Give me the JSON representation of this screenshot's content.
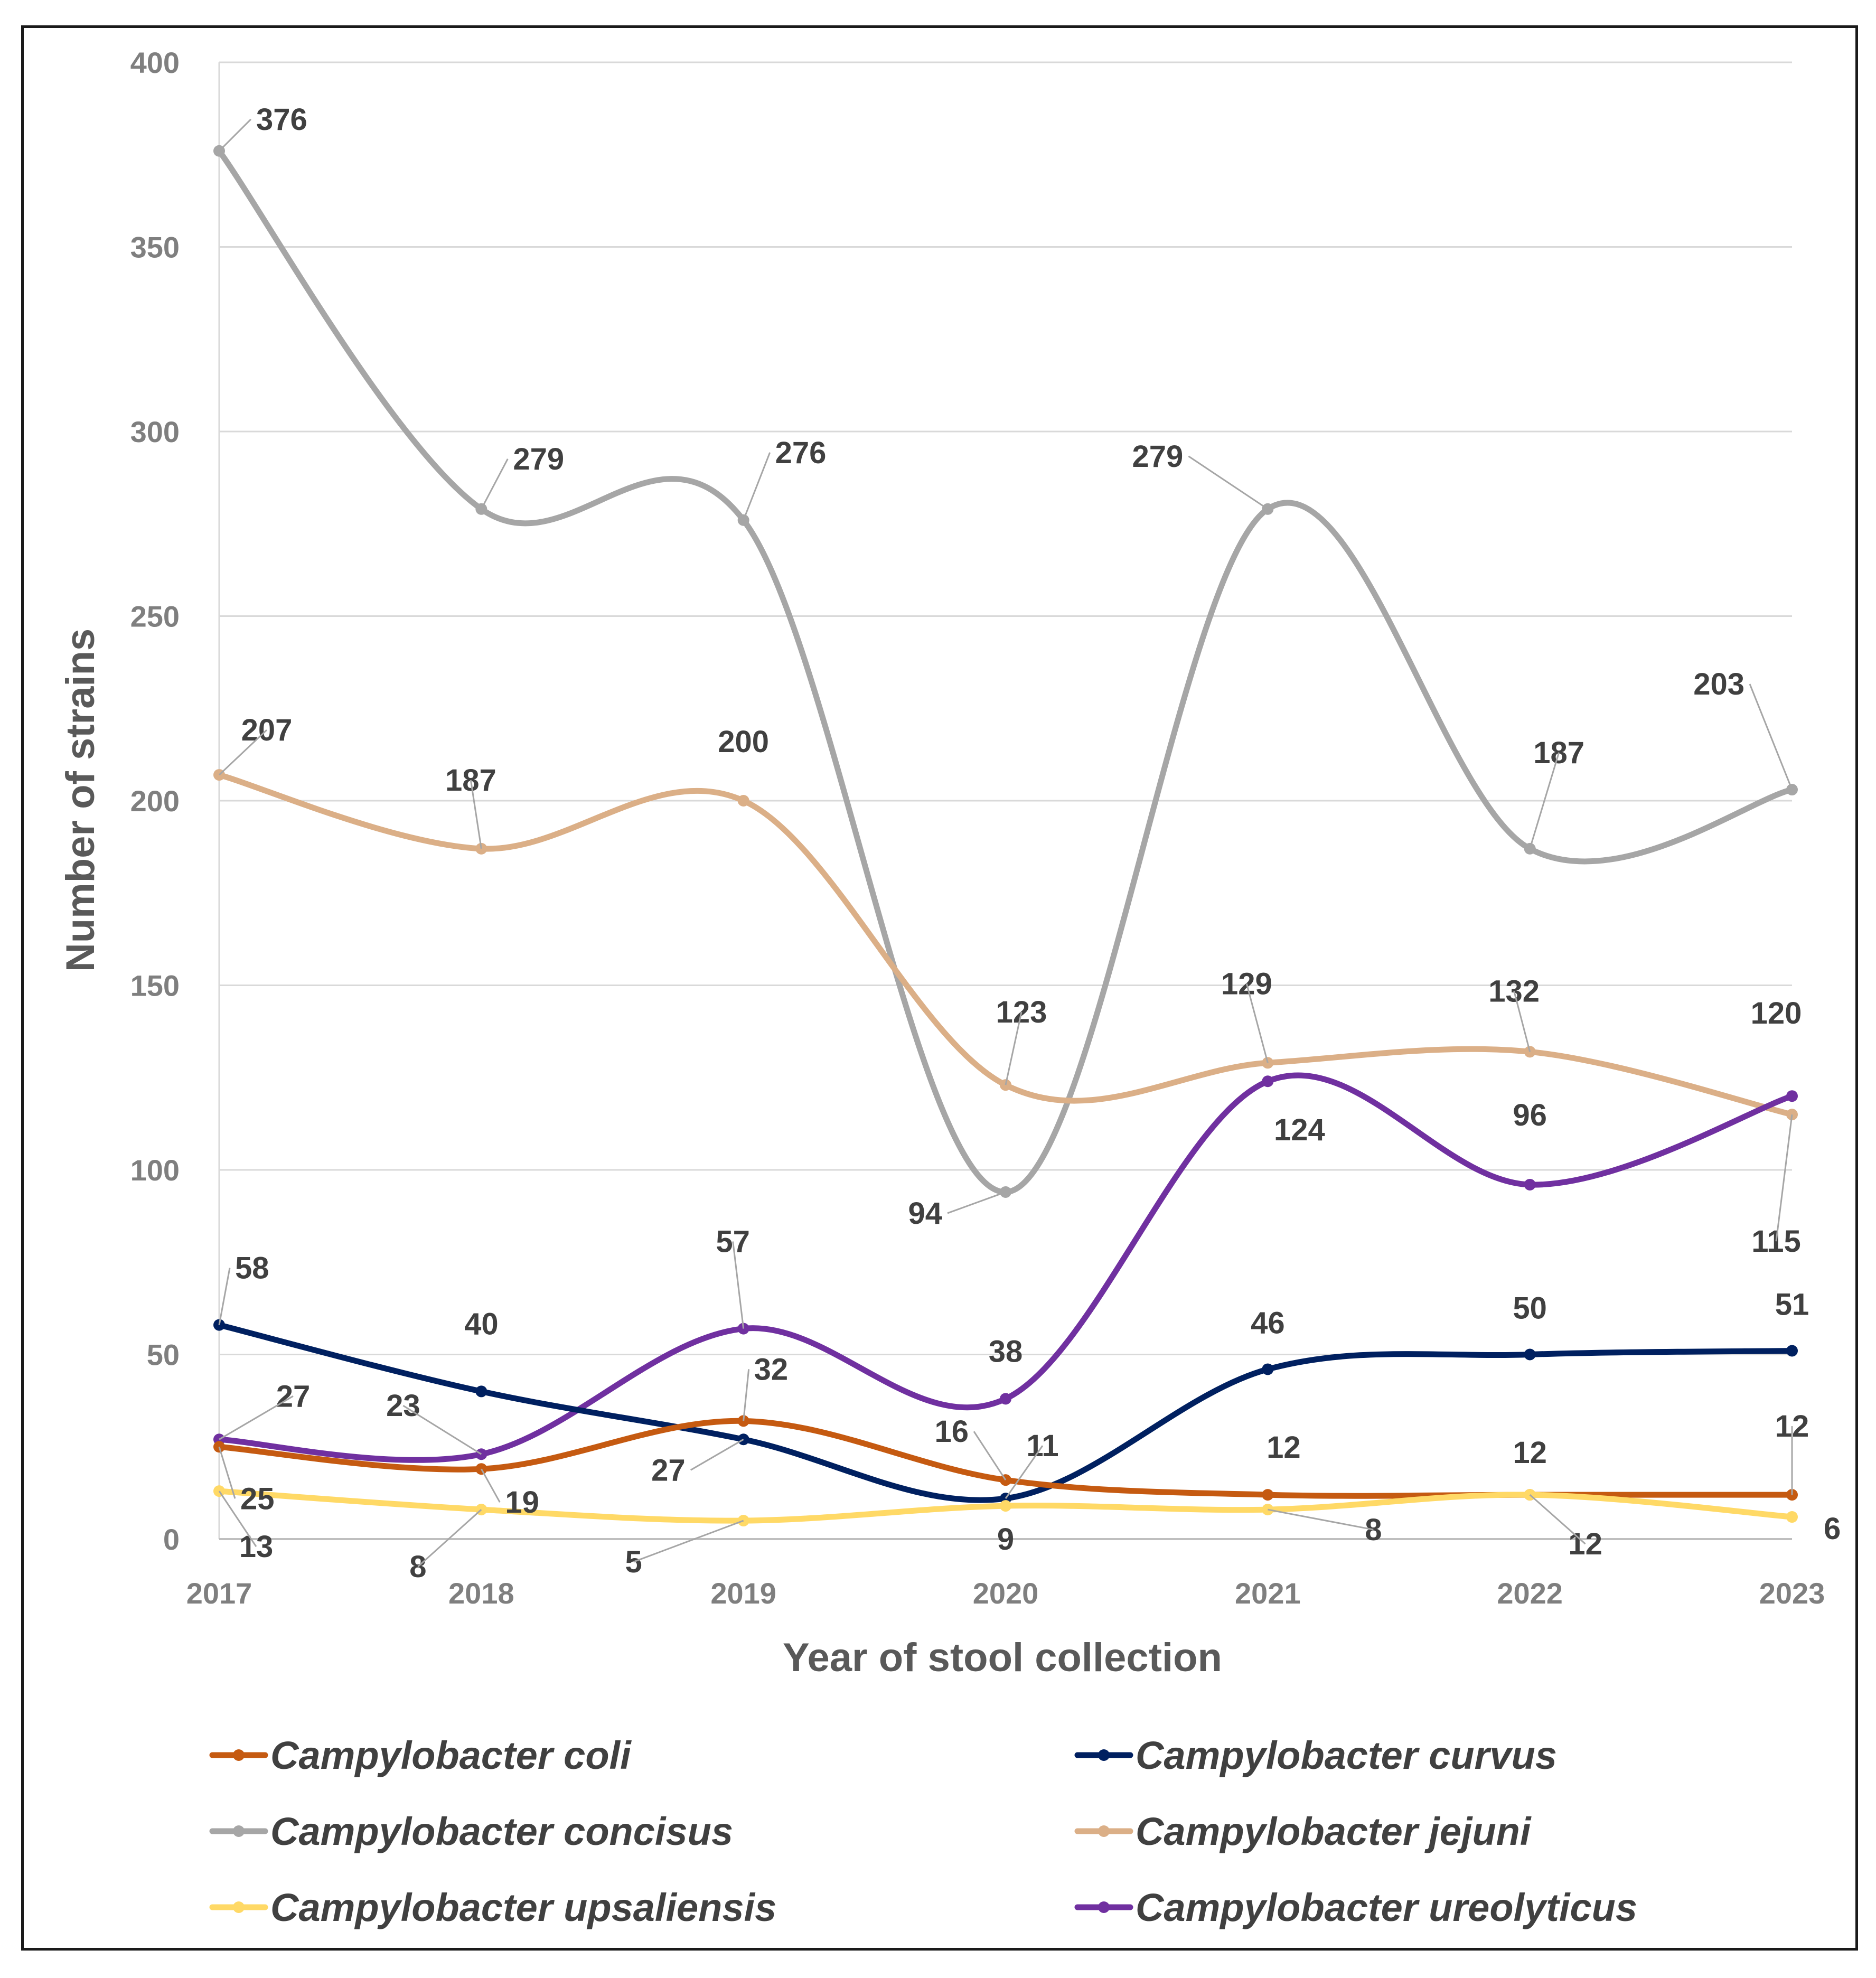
{
  "chart_data": {
    "type": "line",
    "title": "",
    "xlabel": "Year of stool collection",
    "ylabel": "Number of strains",
    "categories": [
      "2017",
      "2018",
      "2019",
      "2020",
      "2021",
      "2022",
      "2023"
    ],
    "ylim": [
      0,
      400
    ],
    "yticks": [
      "0",
      "50",
      "100",
      "150",
      "200",
      "250",
      "300",
      "350",
      "400"
    ],
    "grid": true,
    "legend_position": "bottom",
    "series": [
      {
        "name": "Campylobacter coli",
        "color": "#c55a11",
        "values": [
          25,
          19,
          32,
          16,
          12,
          12,
          12
        ]
      },
      {
        "name": "Campylobacter curvus",
        "color": "#002060",
        "values": [
          58,
          40,
          27,
          11,
          46,
          50,
          51
        ]
      },
      {
        "name": "Campylobacter concisus",
        "color": "#a6a6a6",
        "values": [
          376,
          279,
          276,
          94,
          279,
          187,
          203
        ]
      },
      {
        "name": "Campylobacter jejuni",
        "color": "#dbaf87",
        "values": [
          207,
          187,
          200,
          123,
          129,
          132,
          115
        ]
      },
      {
        "name": "Campylobacter upsaliensis",
        "color": "#ffd966",
        "values": [
          13,
          8,
          5,
          9,
          8,
          12,
          6
        ]
      },
      {
        "name": "Campylobacter ureolyticus",
        "color": "#7030a0",
        "values": [
          27,
          23,
          57,
          38,
          124,
          96,
          120
        ]
      }
    ]
  }
}
